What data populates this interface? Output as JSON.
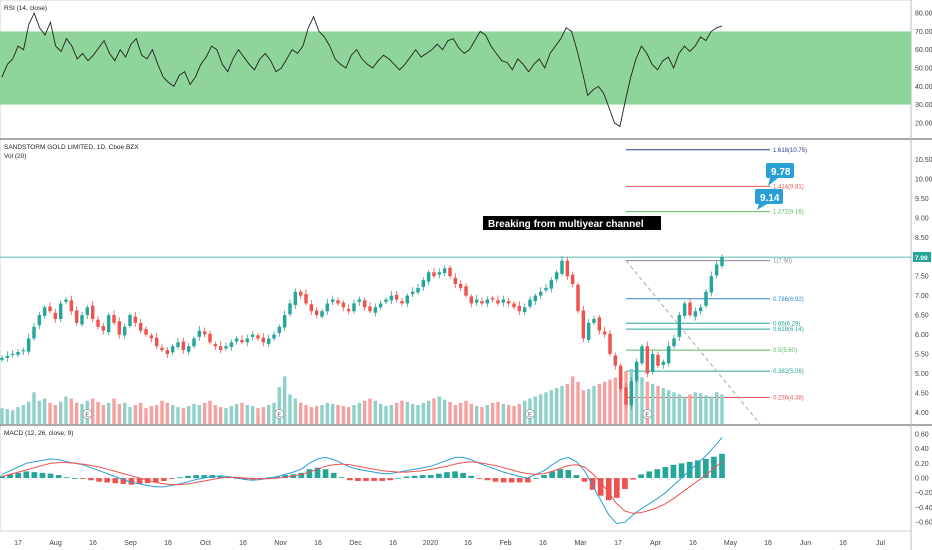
{
  "chart_data": [
    {
      "type": "line",
      "pane": "rsi",
      "title": "RSI (14, close)",
      "ylim": [
        15,
        85
      ],
      "y_ticks": [
        "80.00",
        "70.00",
        "60.00",
        "50.00",
        "40.00",
        "30.00",
        "20.00"
      ],
      "y_tick_values": [
        80,
        70,
        60,
        50,
        40,
        30,
        20
      ],
      "band": [
        30,
        70
      ],
      "colors": {
        "line": "#222222",
        "band": "#8fd49a"
      },
      "series": [
        {
          "values": [
            45,
            52,
            55,
            62,
            60,
            74,
            80,
            72,
            68,
            75,
            62,
            59,
            66,
            62,
            55,
            58,
            54,
            57,
            61,
            65,
            58,
            54,
            60,
            56,
            63,
            66,
            57,
            55,
            60,
            52,
            45,
            42,
            40,
            46,
            48,
            41,
            45,
            52,
            56,
            62,
            60,
            52,
            48,
            55,
            60,
            56,
            52,
            49,
            55,
            58,
            54,
            48,
            50,
            55,
            60,
            58,
            62,
            72,
            78,
            70,
            67,
            62,
            55,
            52,
            50,
            57,
            60,
            55,
            52,
            50,
            54,
            57,
            55,
            52,
            49,
            52,
            56,
            60,
            56,
            58,
            60,
            63,
            60,
            65,
            66,
            61,
            58,
            60,
            65,
            70,
            68,
            62,
            58,
            54,
            53,
            49,
            55,
            52,
            48,
            52,
            55,
            50,
            58,
            62,
            66,
            72,
            70,
            60,
            48,
            35,
            38,
            40,
            36,
            28,
            20,
            18,
            32,
            45,
            55,
            62,
            58,
            52,
            49,
            54,
            56,
            50,
            58,
            62,
            59,
            62,
            67,
            65,
            70,
            72,
            73
          ]
        }
      ]
    },
    {
      "type": "candlestick",
      "pane": "price",
      "title": "SANDSTORM GOLD LIMITED, 1D, Cboe BZX",
      "volume_label": "Vol (20)",
      "ylim": [
        3.7,
        10.95
      ],
      "y_ticks": [
        "10.50",
        "10.00",
        "9.50",
        "9.00",
        "8.50",
        "8.00",
        "7.50",
        "7.00",
        "6.50",
        "6.00",
        "5.50",
        "5.00",
        "4.50",
        "4.00"
      ],
      "y_tick_values": [
        10.5,
        10.0,
        9.5,
        9.0,
        8.5,
        8.0,
        7.5,
        7.0,
        6.5,
        6.0,
        5.5,
        5.0,
        4.5,
        4.0
      ],
      "x_labels": [
        "17",
        "Aug",
        "16",
        "Sep",
        "16",
        "Oct",
        "16",
        "Nov",
        "16",
        "Dec",
        "16",
        "2020",
        "16",
        "Feb",
        "16",
        "Mar",
        "17",
        "Apr",
        "16",
        "May",
        "16",
        "Jun",
        "16",
        "Jul"
      ],
      "last_price": "7.99",
      "annotation": "Breaking from multiyear channel",
      "callouts": [
        "9.78",
        "9.14"
      ],
      "earnings_marker": "E",
      "fib_levels": [
        {
          "label": "1.618(10.75)",
          "value": 10.75,
          "color": "#2a3a8a"
        },
        {
          "label": "1.414(9.81)",
          "value": 9.81,
          "color": "#e05a5a"
        },
        {
          "label": "1.272(9.16)",
          "value": 9.16,
          "color": "#5cb85c"
        },
        {
          "label": "1(7.90)",
          "value": 7.9,
          "color": "#888888"
        },
        {
          "label": "0.786(6.92)",
          "value": 6.92,
          "color": "#2a8ad4"
        },
        {
          "label": "0.65(6.29)",
          "value": 6.29,
          "color": "#2aa59a"
        },
        {
          "label": "0.618(6.14)",
          "value": 6.14,
          "color": "#2aa59a"
        },
        {
          "label": "0.5(5.60)",
          "value": 5.6,
          "color": "#5cb85c"
        },
        {
          "label": "0.382(5.06)",
          "value": 5.06,
          "color": "#2aa59a"
        },
        {
          "label": "0.236(4.38)",
          "value": 4.38,
          "color": "#e05a5a"
        }
      ],
      "colors": {
        "up": "#26a69a",
        "down": "#ef5350",
        "vol_up": "#8fd1c8",
        "vol_down": "#f5a3a1",
        "price_line": "#26a69a",
        "trend": "#aaaaaa",
        "annotation_bg": "#000000",
        "callout": "#2a9fd6"
      },
      "series": [
        {
          "name": "close",
          "values": [
            5.4,
            5.45,
            5.5,
            5.55,
            5.6,
            5.9,
            6.2,
            6.5,
            6.7,
            6.6,
            6.4,
            6.8,
            6.9,
            6.6,
            6.3,
            6.5,
            6.7,
            6.4,
            6.2,
            6.1,
            6.5,
            6.3,
            6.0,
            6.2,
            6.5,
            6.3,
            6.1,
            6.0,
            5.9,
            5.7,
            5.6,
            5.5,
            5.7,
            5.8,
            5.6,
            5.7,
            5.9,
            6.1,
            6.0,
            5.8,
            5.7,
            5.6,
            5.7,
            5.8,
            5.9,
            5.8,
            5.9,
            6.0,
            5.9,
            5.8,
            5.9,
            6.0,
            6.2,
            6.5,
            6.8,
            7.1,
            7.0,
            6.8,
            6.6,
            6.5,
            6.6,
            6.8,
            6.9,
            6.8,
            6.7,
            6.6,
            6.8,
            6.9,
            6.7,
            6.6,
            6.7,
            6.8,
            6.9,
            7.0,
            6.9,
            6.8,
            7.0,
            7.1,
            7.2,
            7.4,
            7.6,
            7.5,
            7.6,
            7.7,
            7.5,
            7.3,
            7.2,
            7.0,
            6.8,
            6.9,
            6.8,
            6.9,
            6.9,
            6.8,
            6.9,
            6.8,
            6.7,
            6.6,
            6.7,
            6.9,
            7.0,
            7.1,
            7.2,
            7.4,
            7.6,
            7.9,
            7.5,
            7.3,
            6.6,
            5.9,
            6.3,
            6.4,
            6.1,
            6.0,
            5.5,
            5.2,
            4.6,
            4.2,
            4.8,
            5.3,
            5.7,
            5.0,
            5.5,
            5.2,
            5.3,
            5.7,
            5.9,
            6.5,
            6.8,
            6.5,
            6.6,
            6.7,
            7.1,
            7.5,
            7.8,
            7.99
          ]
        }
      ],
      "volume": [
        15,
        14,
        13,
        16,
        18,
        21,
        30,
        22,
        24,
        20,
        18,
        21,
        26,
        24,
        20,
        19,
        22,
        24,
        21,
        18,
        20,
        24,
        19,
        20,
        16,
        18,
        20,
        15,
        17,
        18,
        22,
        20,
        18,
        16,
        15,
        17,
        19,
        18,
        20,
        22,
        18,
        16,
        15,
        17,
        19,
        20,
        18,
        17,
        15,
        16,
        18,
        20,
        35,
        45,
        28,
        24,
        20,
        18,
        16,
        17,
        18,
        20,
        19,
        18,
        17,
        16,
        18,
        20,
        22,
        24,
        22,
        19,
        17,
        18,
        20,
        22,
        21,
        19,
        18,
        20,
        22,
        24,
        26,
        23,
        21,
        18,
        20,
        22,
        19,
        17,
        16,
        18,
        20,
        21,
        19,
        18,
        17,
        19,
        22,
        24,
        26,
        28,
        30,
        32,
        34,
        36,
        38,
        45,
        40,
        32,
        33,
        36,
        38,
        40,
        42,
        44,
        46,
        50,
        52,
        48,
        44,
        40,
        38,
        36,
        34,
        32,
        30,
        28,
        26,
        28,
        30,
        29,
        27,
        26,
        30,
        28
      ]
    },
    {
      "type": "line",
      "pane": "macd",
      "title": "MACD (12, 26, close, 9)",
      "ylim": [
        -0.72,
        0.68
      ],
      "y_ticks": [
        "0.60",
        "0.40",
        "0.20",
        "0.00",
        "−0.20",
        "−0.40",
        "−0.60"
      ],
      "y_tick_values": [
        0.6,
        0.4,
        0.2,
        0.0,
        -0.2,
        -0.4,
        -0.6
      ],
      "colors": {
        "macd": "#2a9fd6",
        "signal": "#ef5350",
        "hist_up": "#26a69a",
        "hist_down": "#ef5350"
      },
      "series": [
        {
          "values": [
            0.05,
            0.1,
            0.15,
            0.2,
            0.22,
            0.24,
            0.26,
            0.25,
            0.22,
            0.2,
            0.18,
            0.14,
            0.1,
            0.06,
            0.02,
            -0.02,
            -0.06,
            -0.08,
            -0.1,
            -0.12,
            -0.12,
            -0.1,
            -0.08,
            -0.05,
            -0.02,
            0,
            0.02,
            0.03,
            0.02,
            0,
            -0.02,
            -0.03,
            -0.02,
            0,
            0.02,
            0.05,
            0.08,
            0.12,
            0.2,
            0.26,
            0.28,
            0.25,
            0.2,
            0.15,
            0.12,
            0.1,
            0.08,
            0.06,
            0.06,
            0.08,
            0.1,
            0.12,
            0.14,
            0.16,
            0.2,
            0.24,
            0.28,
            0.28,
            0.25,
            0.2,
            0.16,
            0.12,
            0.08,
            0.05,
            0.02,
            0,
            0.05,
            0.1,
            0.18,
            0.25,
            0.28,
            0.22,
            0.1,
            -0.1,
            -0.3,
            -0.5,
            -0.62,
            -0.6,
            -0.5,
            -0.42,
            -0.35,
            -0.28,
            -0.2,
            -0.1,
            0,
            0.1,
            0.2,
            0.3,
            0.42,
            0.55
          ]
        },
        {
          "values": [
            0.02,
            0.05,
            0.08,
            0.11,
            0.14,
            0.17,
            0.2,
            0.21,
            0.21,
            0.2,
            0.19,
            0.17,
            0.15,
            0.12,
            0.09,
            0.06,
            0.03,
            0,
            -0.03,
            -0.06,
            -0.08,
            -0.09,
            -0.09,
            -0.08,
            -0.06,
            -0.04,
            -0.02,
            0,
            0.01,
            0.01,
            0,
            -0.01,
            -0.01,
            -0.01,
            0,
            0.01,
            0.03,
            0.05,
            0.08,
            0.12,
            0.16,
            0.18,
            0.19,
            0.18,
            0.16,
            0.14,
            0.12,
            0.1,
            0.09,
            0.08,
            0.08,
            0.09,
            0.1,
            0.12,
            0.14,
            0.16,
            0.19,
            0.21,
            0.22,
            0.21,
            0.19,
            0.17,
            0.14,
            0.11,
            0.08,
            0.06,
            0.05,
            0.06,
            0.09,
            0.13,
            0.17,
            0.18,
            0.15,
            0.06,
            -0.06,
            -0.2,
            -0.35,
            -0.45,
            -0.48,
            -0.47,
            -0.44,
            -0.4,
            -0.35,
            -0.28,
            -0.2,
            -0.12,
            -0.04,
            0.04,
            0.13,
            0.22
          ]
        }
      ]
    }
  ]
}
